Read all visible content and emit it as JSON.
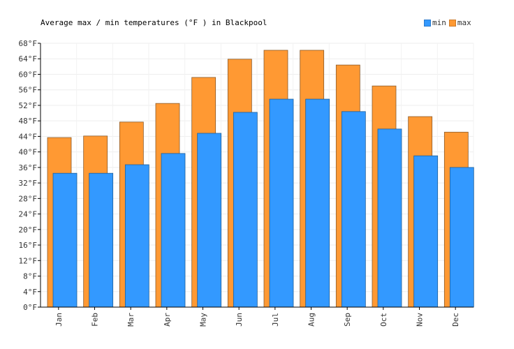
{
  "chart_data": {
    "type": "bar",
    "title": "Average max / min temperatures (°F ) in Blackpool",
    "categories": [
      "Jan",
      "Feb",
      "Mar",
      "Apr",
      "May",
      "Jun",
      "Jul",
      "Aug",
      "Sep",
      "Oct",
      "Nov",
      "Dec"
    ],
    "series": [
      {
        "name": "max",
        "color": "#ff9933",
        "values": [
          43.7,
          44.1,
          47.7,
          52.5,
          59.2,
          63.9,
          66.2,
          66.2,
          62.4,
          57.0,
          49.1,
          45.1
        ]
      },
      {
        "name": "min",
        "color": "#3399ff",
        "values": [
          34.5,
          34.5,
          36.7,
          39.6,
          44.8,
          50.2,
          53.6,
          53.6,
          50.4,
          45.9,
          39.0,
          36.0
        ]
      }
    ],
    "ylim": [
      0,
      68
    ],
    "yticks": [
      "0°F",
      "4°F",
      "8°F",
      "12°F",
      "16°F",
      "20°F",
      "24°F",
      "28°F",
      "32°F",
      "36°F",
      "40°F",
      "44°F",
      "48°F",
      "52°F",
      "56°F",
      "60°F",
      "64°F",
      "68°F"
    ],
    "ytick_values": [
      0,
      4,
      8,
      12,
      16,
      20,
      24,
      28,
      32,
      36,
      40,
      44,
      48,
      52,
      56,
      60,
      64,
      68
    ],
    "grid": true,
    "legend": "top-right",
    "xlabel": "",
    "ylabel": ""
  }
}
